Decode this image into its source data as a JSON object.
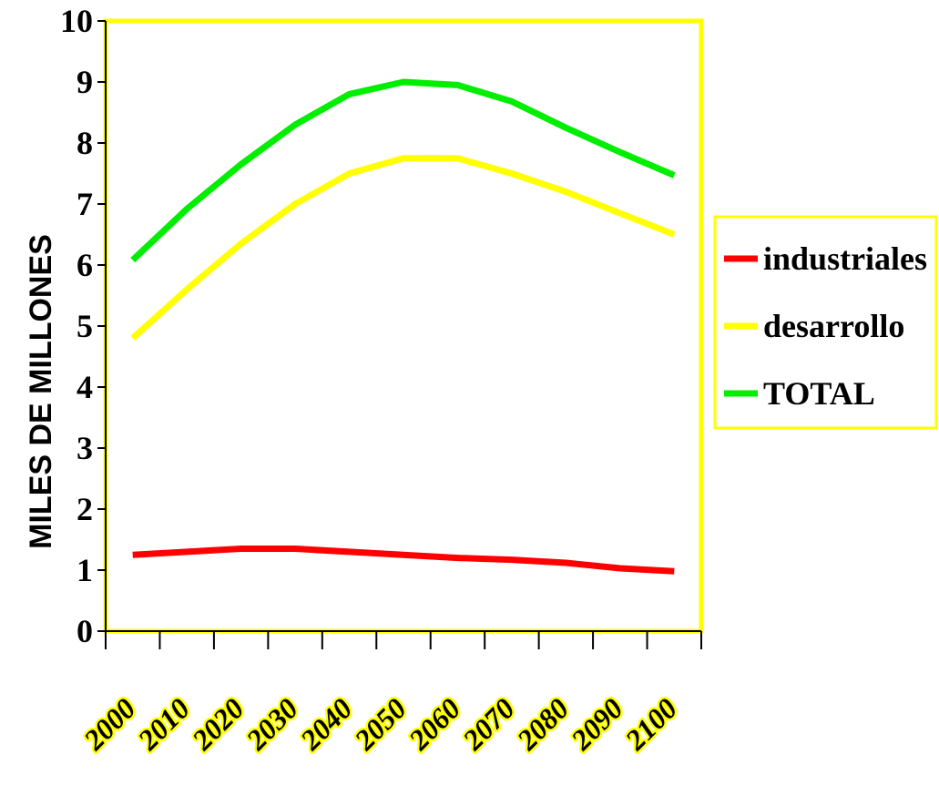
{
  "chart_data": {
    "type": "line",
    "ylabel": "MILES DE MILLONES",
    "xlabel": "",
    "title": "",
    "ylim": [
      0,
      10
    ],
    "yticks": [
      "0",
      "1",
      "2",
      "3",
      "4",
      "5",
      "6",
      "7",
      "8",
      "9",
      "10"
    ],
    "categories": [
      "2000",
      "2010",
      "2020",
      "2030",
      "2040",
      "2050",
      "2060",
      "2070",
      "2080",
      "2090",
      "2100"
    ],
    "series": [
      {
        "name": "industriales",
        "color": "#ff0000",
        "values": [
          1.25,
          1.3,
          1.35,
          1.35,
          1.3,
          1.25,
          1.2,
          1.17,
          1.12,
          1.03,
          0.98
        ]
      },
      {
        "name": "desarrollo",
        "color": "#ffff00",
        "values": [
          4.8,
          5.6,
          6.35,
          7.0,
          7.5,
          7.75,
          7.75,
          7.5,
          7.2,
          6.85,
          6.5
        ]
      },
      {
        "name": "TOTAL",
        "color": "#00ee00",
        "values": [
          6.08,
          6.92,
          7.65,
          8.3,
          8.8,
          9.0,
          8.95,
          8.68,
          8.25,
          7.85,
          7.47
        ]
      }
    ],
    "legend_position": "right",
    "grid": false,
    "plot_border_color": "#ffff00"
  }
}
